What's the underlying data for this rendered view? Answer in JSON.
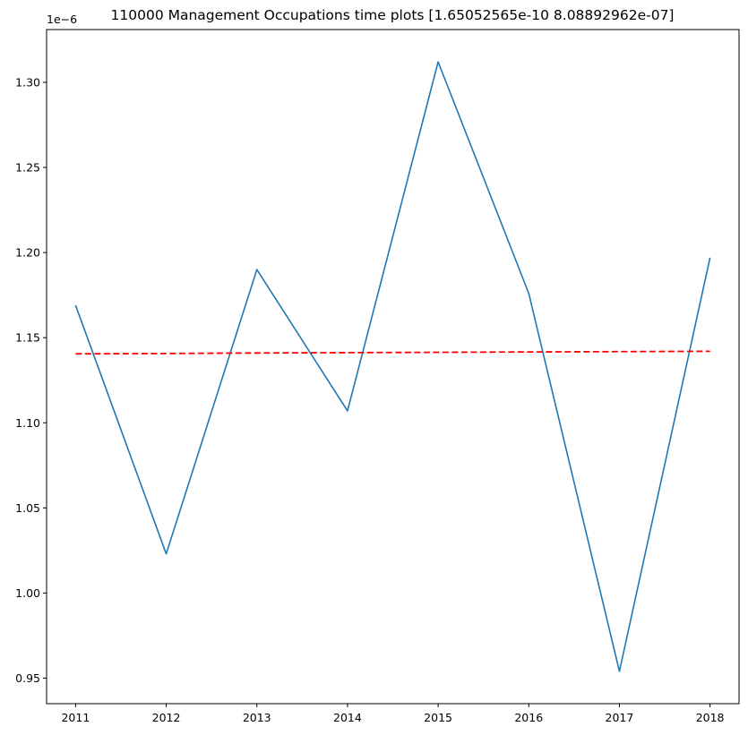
{
  "chart_data": {
    "type": "line",
    "title": "110000 Management Occupations time plots [1.65052565e-10 8.08892962e-07]",
    "xlabel": "",
    "ylabel": "",
    "offset_label": "1e−6",
    "x": [
      2011,
      2012,
      2013,
      2014,
      2015,
      2016,
      2017,
      2018
    ],
    "x_ticks": [
      "2011",
      "2012",
      "2013",
      "2014",
      "2015",
      "2016",
      "2017",
      "2018"
    ],
    "y_ticks": [
      "0.95",
      "1.00",
      "1.05",
      "1.10",
      "1.15",
      "1.20",
      "1.25",
      "1.30"
    ],
    "y_tick_values": [
      0.95,
      1.0,
      1.05,
      1.1,
      1.15,
      1.2,
      1.25,
      1.3
    ],
    "ylim": [
      0.935,
      1.331
    ],
    "xlim": [
      2010.68,
      2018.32
    ],
    "grid": false,
    "series": [
      {
        "color": "#1f77b4",
        "style": "solid",
        "values": [
          1.169,
          1.023,
          1.19,
          1.107,
          1.312,
          1.176,
          0.954,
          1.197
        ]
      },
      {
        "color": "#ff0000",
        "style": "dashed",
        "values": [
          1.1405,
          1.1407,
          1.141,
          1.1412,
          1.1414,
          1.1416,
          1.1418,
          1.142
        ]
      }
    ]
  }
}
